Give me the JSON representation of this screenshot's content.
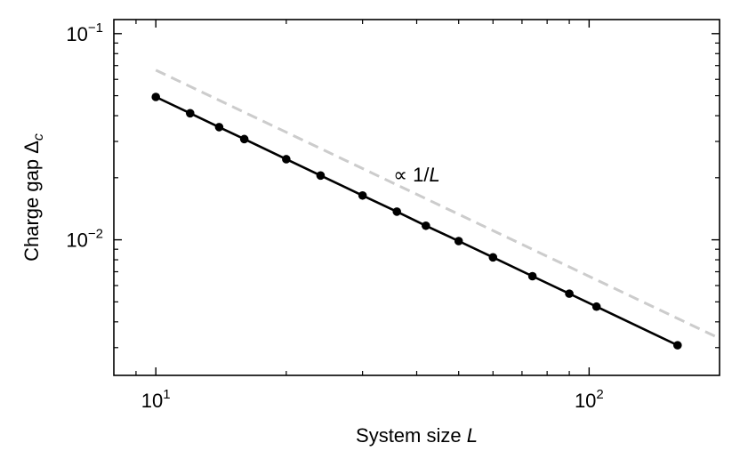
{
  "chart_data": {
    "type": "line",
    "scale": {
      "x": "log",
      "y": "log"
    },
    "xlim": [
      8.0,
      200.0
    ],
    "ylim": [
      0.0022,
      0.117
    ],
    "xlabel": {
      "text": "System size ",
      "italic": "L"
    },
    "ylabel": {
      "text": "Charge gap Δ",
      "sub": "c"
    },
    "x_ticks": [
      {
        "value": 10,
        "base": "10",
        "exp": "1"
      },
      {
        "value": 100,
        "base": "10",
        "exp": "2"
      }
    ],
    "y_ticks": [
      {
        "value": 0.1,
        "base": "10",
        "exp": "−1"
      },
      {
        "value": 0.01,
        "base": "10",
        "exp": "−2"
      }
    ],
    "grid": false,
    "series": [
      {
        "style": "solid-with-markers",
        "color": "#000000",
        "x": [
          10,
          12,
          14,
          16,
          20,
          24,
          30,
          36,
          42,
          50,
          60,
          74,
          90,
          104,
          160
        ],
        "y": [
          0.0493,
          0.0411,
          0.0352,
          0.0308,
          0.0246,
          0.0205,
          0.0164,
          0.0137,
          0.0117,
          0.00986,
          0.00822,
          0.00666,
          0.00548,
          0.00474,
          0.00308
        ]
      },
      {
        "style": "dashed",
        "color": "#cccccc",
        "x": [
          10,
          200
        ],
        "y": [
          0.0665,
          0.003325
        ]
      }
    ],
    "annotation": {
      "text": "∝ 1/",
      "italic": "L",
      "x": 40,
      "y": 0.0208
    }
  }
}
